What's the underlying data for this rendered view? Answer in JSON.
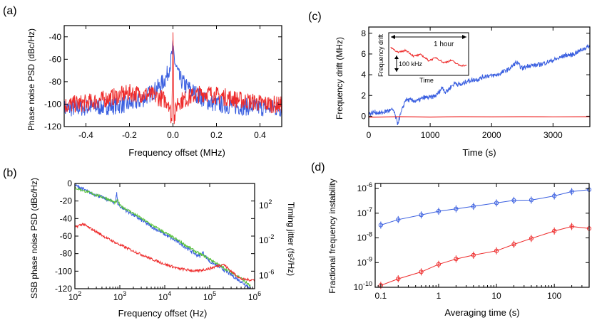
{
  "colors": {
    "blue": "#3a5fe0",
    "red": "#ee2a2a",
    "green": "#56c13a",
    "axis": "#000000"
  },
  "panels": {
    "a": {
      "label": "(a)"
    },
    "b": {
      "label": "(b)"
    },
    "c": {
      "label": "(c)"
    },
    "d": {
      "label": "(d)"
    }
  },
  "chart_data": [
    {
      "id": "a",
      "type": "line",
      "xlabel": "Frequency offset (MHz)",
      "ylabel": "Phase noise PSD (dBc/Hz)",
      "xlim": [
        -0.5,
        0.5
      ],
      "ylim": [
        -120,
        -30
      ],
      "xticks": [
        -0.4,
        -0.2,
        0.0,
        0.2,
        0.4
      ],
      "xtick_labels": [
        "-0.4",
        "-0.2",
        "0.0",
        "0.2",
        "0.4"
      ],
      "yticks": [
        -120,
        -100,
        -80,
        -60,
        -40
      ],
      "ytick_labels": [
        "-120",
        "-100",
        "-80",
        "-60",
        "-40"
      ],
      "series": [
        {
          "name": "blue",
          "color": "#3a5fe0",
          "x": [
            -0.5,
            -0.4,
            -0.3,
            -0.2,
            -0.15,
            -0.1,
            -0.06,
            -0.03,
            -0.01,
            0.0,
            0.01,
            0.03,
            0.06,
            0.1,
            0.15,
            0.2,
            0.3,
            0.4,
            0.5
          ],
          "y": [
            -104,
            -103,
            -102,
            -100,
            -97,
            -90,
            -84,
            -76,
            -62,
            -50,
            -64,
            -77,
            -84,
            -90,
            -97,
            -100,
            -102,
            -103,
            -104
          ]
        },
        {
          "name": "red",
          "color": "#ee2a2a",
          "x": [
            -0.5,
            -0.4,
            -0.3,
            -0.2,
            -0.15,
            -0.1,
            -0.05,
            -0.02,
            -0.005,
            0.0,
            0.005,
            0.02,
            0.05,
            0.1,
            0.15,
            0.2,
            0.3,
            0.4,
            0.5
          ],
          "y": [
            -101,
            -99,
            -95,
            -90,
            -91,
            -92,
            -95,
            -98,
            -115,
            -36,
            -115,
            -98,
            -96,
            -92,
            -90,
            -92,
            -96,
            -99,
            -101
          ]
        }
      ]
    },
    {
      "id": "b",
      "type": "line",
      "xlabel": "Frequency offset (Hz)",
      "ylabel": "SSB phase noise PSD (dBc/Hz)",
      "ylabel_right": "Timing jitter (fs²/Hz)",
      "xscale": "log",
      "xlim": [
        100,
        1000000
      ],
      "ylim": [
        -120,
        0
      ],
      "xticks": [
        100,
        1000,
        10000,
        100000,
        1000000
      ],
      "xtick_labels": [
        "10^2",
        "10^3",
        "10^4",
        "10^5",
        "10^6"
      ],
      "yticks": [
        -120,
        -100,
        -80,
        -60,
        -40,
        -20,
        0
      ],
      "ytick_labels": [
        "-120",
        "-100",
        "-80",
        "-60",
        "-40",
        "-20",
        "0"
      ],
      "right_ticks": [
        {
          "label": "10^2",
          "y": -25
        },
        {
          "label": "10^-2",
          "y": -65
        },
        {
          "label": "10^-6",
          "y": -105
        }
      ],
      "series": [
        {
          "name": "blue",
          "color": "#3a5fe0",
          "x": [
            100,
            150,
            200,
            300,
            500,
            800,
            850,
            900,
            1000,
            2000,
            5000,
            10000,
            20000,
            50000,
            60000,
            70000,
            100000,
            200000,
            500000,
            800000
          ],
          "y": [
            -2,
            -6,
            -10,
            -13,
            -18,
            -22,
            -10,
            -23,
            -26,
            -36,
            -49,
            -58,
            -67,
            -81,
            -83,
            -79,
            -89,
            -98,
            -112,
            -119
          ]
        },
        {
          "name": "green",
          "color": "#56c13a",
          "x": [
            100,
            200,
            500,
            800,
            900,
            1000,
            2000,
            5000,
            10000,
            20000,
            50000,
            100000,
            200000,
            500000,
            800000
          ],
          "y": [
            -5,
            -10,
            -17,
            -22,
            -19,
            -25,
            -34,
            -47,
            -56,
            -65,
            -78,
            -86,
            -96,
            -108,
            -117
          ]
        },
        {
          "name": "red",
          "color": "#ee2a2a",
          "x": [
            100,
            150,
            200,
            300,
            500,
            1000,
            2000,
            5000,
            10000,
            20000,
            50000,
            100000,
            150000,
            200000,
            300000,
            500000,
            800000,
            1000000
          ],
          "y": [
            -50,
            -46,
            -50,
            -55,
            -62,
            -70,
            -77,
            -86,
            -92,
            -97,
            -100,
            -97,
            -94,
            -92,
            -100,
            -109,
            -110,
            -110
          ]
        }
      ]
    },
    {
      "id": "c",
      "type": "line",
      "xlabel": "Time (s)",
      "ylabel": "Frequency drift (MHz)",
      "xlim": [
        0,
        3600
      ],
      "ylim": [
        -1,
        8.6
      ],
      "xticks": [
        0,
        1000,
        2000,
        3000
      ],
      "xtick_labels": [
        "0",
        "1000",
        "2000",
        "3000"
      ],
      "yticks": [
        0,
        2,
        4,
        6,
        8
      ],
      "ytick_labels": [
        "0",
        "2",
        "4",
        "6",
        "8"
      ],
      "series": [
        {
          "name": "blue",
          "color": "#3a5fe0",
          "x": [
            0,
            100,
            200,
            300,
            400,
            470,
            520,
            600,
            700,
            800,
            900,
            1000,
            1100,
            1200,
            1250,
            1400,
            1500,
            1600,
            1700,
            1800,
            1900,
            2000,
            2100,
            2200,
            2300,
            2400,
            2500,
            2600,
            2700,
            2800,
            2900,
            3000,
            3100,
            3200,
            3300,
            3400,
            3500,
            3600
          ],
          "y": [
            0.2,
            0.4,
            0.3,
            0.5,
            0.6,
            -0.7,
            0.2,
            1.6,
            1.5,
            1.5,
            1.8,
            1.8,
            2.0,
            2.8,
            2.3,
            3.2,
            3.0,
            3.4,
            3.5,
            3.6,
            3.9,
            3.9,
            4.0,
            4.3,
            4.6,
            5.2,
            4.6,
            4.9,
            4.9,
            5.0,
            5.2,
            5.4,
            5.6,
            5.9,
            5.9,
            6.2,
            6.5,
            6.8
          ]
        },
        {
          "name": "red",
          "color": "#ee2a2a",
          "x": [
            0,
            500,
            1000,
            1500,
            2000,
            2500,
            3000,
            3600
          ],
          "y": [
            -0.1,
            -0.05,
            -0.08,
            -0.05,
            -0.07,
            -0.05,
            -0.06,
            -0.05
          ]
        }
      ],
      "inset": {
        "arrow_label": "1 hour",
        "scale_label": "100 kHz",
        "xlabel": "Time",
        "ylabel": "Frequency drift",
        "series": {
          "name": "red",
          "color": "#ee2a2a",
          "x": [
            0,
            0.1,
            0.2,
            0.3,
            0.4,
            0.5,
            0.6,
            0.7,
            0.8,
            0.9,
            1.0
          ],
          "y": [
            0.8,
            0.62,
            0.7,
            0.5,
            0.55,
            0.35,
            0.45,
            0.28,
            0.36,
            0.2,
            0.18
          ]
        }
      }
    },
    {
      "id": "d",
      "type": "line",
      "xlabel": "Averaging time (s)",
      "ylabel": "Fractional frequency instability",
      "xscale": "log",
      "yscale": "log",
      "xlim": [
        0.08,
        400
      ],
      "ylim": [
        1e-10,
        1.6e-06
      ],
      "xticks": [
        0.1,
        1,
        10,
        100
      ],
      "xtick_labels": [
        "0.1",
        "1",
        "10",
        "100"
      ],
      "yticks": [
        1e-10,
        1e-09,
        1e-08,
        1e-07,
        1e-06
      ],
      "ytick_labels": [
        "10^-10",
        "10^-9",
        "10^-8",
        "10^-7",
        "10^-6"
      ],
      "series": [
        {
          "name": "blue",
          "color": "#3a5fe0",
          "x": [
            0.1,
            0.2,
            0.5,
            1,
            2,
            4,
            10,
            20,
            40,
            100,
            200,
            400
          ],
          "y": [
            3.3e-08,
            5.5e-08,
            8.5e-08,
            1.2e-07,
            1.5e-07,
            1.9e-07,
            2.6e-07,
            3.3e-07,
            3.4e-07,
            5e-07,
            7.5e-07,
            9e-07
          ]
        },
        {
          "name": "red",
          "color": "#ee2a2a",
          "x": [
            0.1,
            0.2,
            0.5,
            1,
            2,
            4,
            10,
            20,
            40,
            100,
            200,
            400
          ],
          "y": [
            1.2e-10,
            2.2e-10,
            4.2e-10,
            8.5e-10,
            1.4e-09,
            2e-09,
            3e-09,
            5.5e-09,
            9.5e-09,
            1.9e-08,
            2.9e-08,
            2.4e-08
          ]
        }
      ]
    }
  ]
}
